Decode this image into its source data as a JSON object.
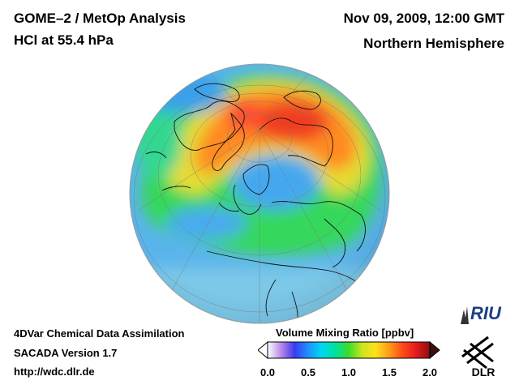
{
  "header": {
    "title": "GOME–2 / MetOp Analysis",
    "subtitle": "HCl at 55.4 hPa",
    "datetime": "Nov 09, 2009, 12:00 GMT",
    "region": "Northern Hemisphere"
  },
  "footer": {
    "line1": "4DVar Chemical Data Assimilation",
    "line2": "SACADA Version 1.7",
    "line3": "http://wdc.dlr.de"
  },
  "colorbar": {
    "title": "Volume Mixing Ratio [ppbv]",
    "min": 0.0,
    "max": 2.0,
    "ticks": [
      "0.0",
      "0.5",
      "1.0",
      "1.5",
      "2.0"
    ],
    "colors": [
      "#ffffff",
      "#b889e8",
      "#3a3af0",
      "#1e90ff",
      "#00d8f0",
      "#00e0a0",
      "#3ddc2c",
      "#c8e61e",
      "#ffe11a",
      "#ff9a1a",
      "#ff4a1a",
      "#e41a1a",
      "#8a1010"
    ]
  },
  "logos": {
    "riu": "RIU",
    "dlr": "DLR"
  },
  "map": {
    "projection": "orthographic",
    "hemisphere": "Northern",
    "ocean_color": "#6ec1e8",
    "low_color": "#3a9ee8",
    "mid_color": "#3ddc4a",
    "high_color": "#ff5030"
  }
}
